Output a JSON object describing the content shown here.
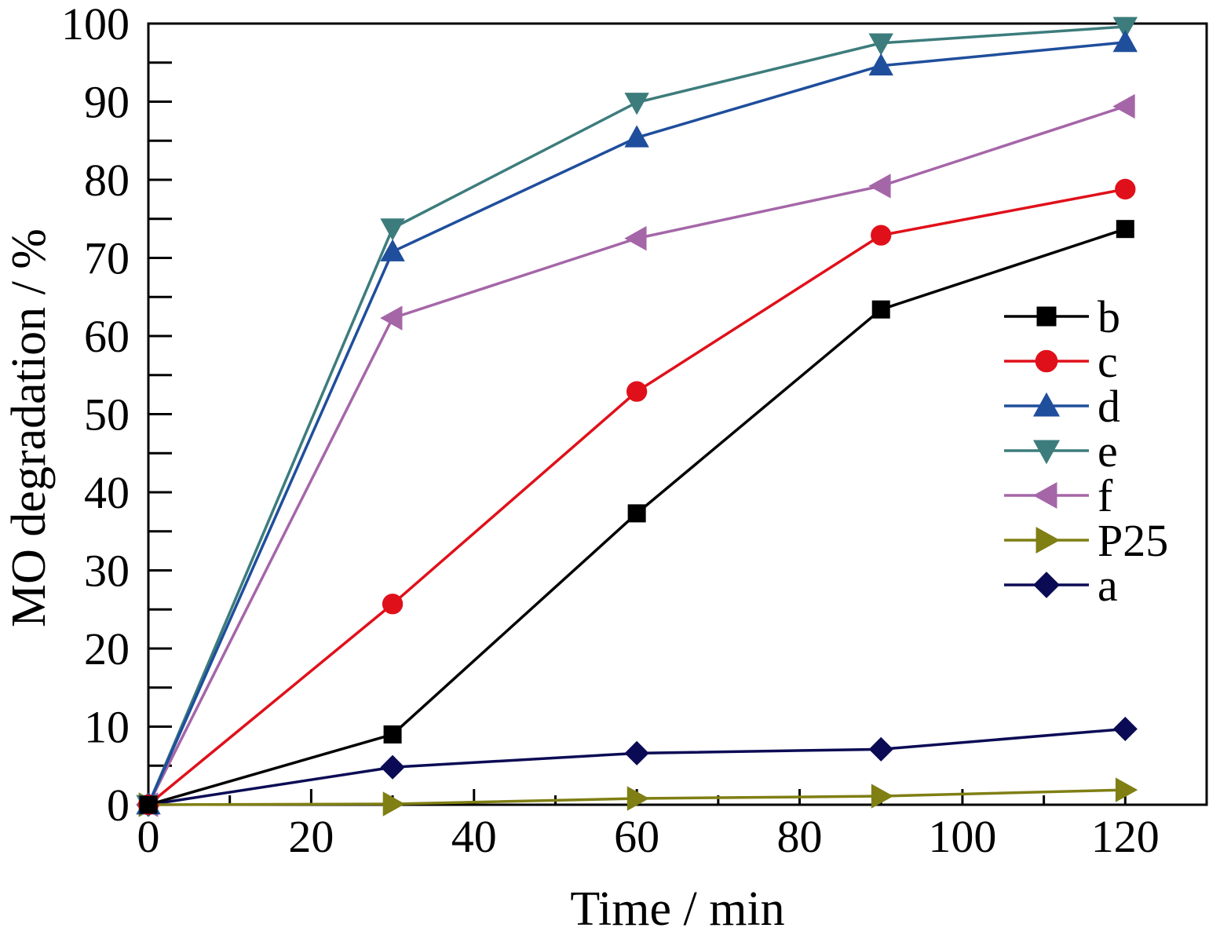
{
  "chart_data": {
    "type": "line",
    "title": "",
    "xlabel": "Time / min",
    "ylabel": "MO degradation / %",
    "xlim": [
      0,
      130
    ],
    "ylim": [
      0,
      100
    ],
    "x_ticks": [
      0,
      20,
      40,
      60,
      80,
      100,
      120
    ],
    "y_ticks": [
      0,
      10,
      20,
      30,
      40,
      50,
      60,
      70,
      80,
      90,
      100
    ],
    "grid": false,
    "legend_position": "right",
    "x": [
      0,
      30,
      60,
      90,
      120
    ],
    "series": [
      {
        "name": "b",
        "color": "#000000",
        "marker": "square",
        "values": [
          0,
          9.0,
          37.3,
          63.4,
          73.7
        ]
      },
      {
        "name": "c",
        "color": "#e0101a",
        "marker": "circle",
        "values": [
          0,
          25.7,
          52.9,
          72.9,
          78.8
        ]
      },
      {
        "name": "d",
        "color": "#1f4e9c",
        "marker": "triangle-up",
        "values": [
          0,
          70.8,
          85.4,
          94.6,
          97.6
        ]
      },
      {
        "name": "e",
        "color": "#3d7c7c",
        "marker": "triangle-down",
        "values": [
          0,
          73.8,
          89.9,
          97.5,
          99.6
        ]
      },
      {
        "name": "f",
        "color": "#a566a8",
        "marker": "triangle-left",
        "values": [
          0,
          62.3,
          72.5,
          79.2,
          89.4
        ]
      },
      {
        "name": "P25",
        "color": "#7f7f14",
        "marker": "triangle-right",
        "values": [
          0,
          0.1,
          0.8,
          1.1,
          1.9
        ]
      },
      {
        "name": "a",
        "color": "#0b0b55",
        "marker": "diamond",
        "values": [
          0,
          4.8,
          6.6,
          7.1,
          9.7
        ]
      }
    ]
  }
}
